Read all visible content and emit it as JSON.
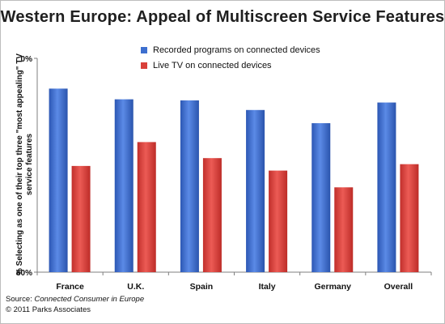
{
  "chart_data": {
    "type": "bar",
    "title": "Western Europe: Appeal of Multiscreen Service Features",
    "ylabel": "% Selecting as one of their top three \"most appealing\" TV service features",
    "xlabel": "",
    "ylim": [
      0,
      60
    ],
    "yticks": [
      "0%",
      "60%"
    ],
    "categories": [
      "France",
      "U.K.",
      "Spain",
      "Italy",
      "Germany",
      "Overall"
    ],
    "series": [
      {
        "name": "Recorded programs on connected devices",
        "color": "#3d6fcf",
        "values": [
          51.5,
          48.5,
          48.2,
          45.5,
          41.8,
          47.6
        ]
      },
      {
        "name": "Live TV on connected devices",
        "color": "#d9403a",
        "values": [
          29.8,
          36.5,
          32.0,
          28.5,
          23.8,
          30.3
        ]
      }
    ],
    "legend_position": "top"
  },
  "source": {
    "prefix": "Source: ",
    "title": "Connected Consumer in Europe",
    "copyright": "© 2011 Parks Associates"
  }
}
